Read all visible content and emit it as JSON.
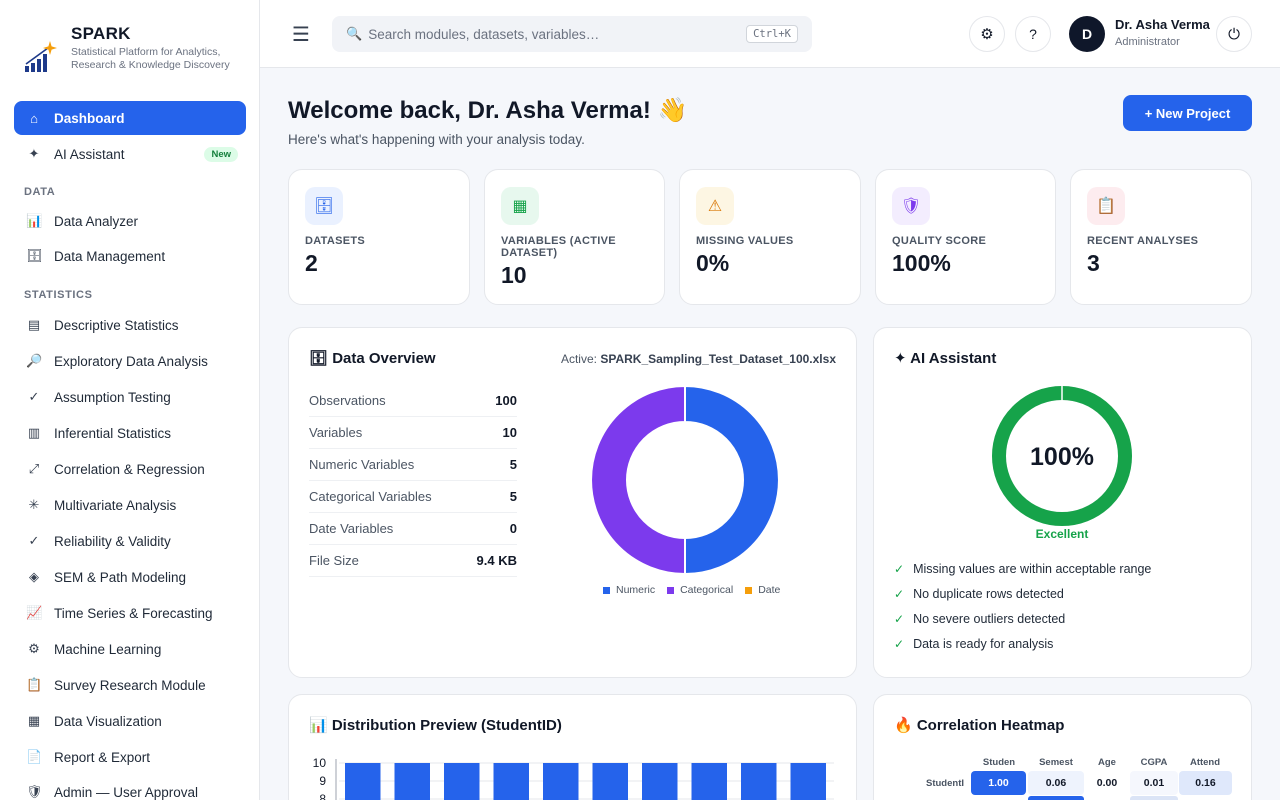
{
  "brand": {
    "name": "SPARK",
    "tagline": "Statistical Platform for Analytics, Research & Knowledge Discovery"
  },
  "sidebar": {
    "top_items": [
      {
        "label": "Dashboard",
        "icon": "home-icon",
        "active": true
      },
      {
        "label": "AI Assistant",
        "icon": "sparkle-icon",
        "badge": "New"
      }
    ],
    "sections": [
      {
        "title": "DATA",
        "items": [
          {
            "label": "Data Analyzer",
            "icon": "bar-chart-icon"
          },
          {
            "label": "Data Management",
            "icon": "database-icon"
          }
        ]
      },
      {
        "title": "STATISTICS",
        "items": [
          {
            "label": "Descriptive Statistics",
            "icon": "list-icon"
          },
          {
            "label": "Exploratory Data Analysis",
            "icon": "magnifier-icon"
          },
          {
            "label": "Assumption Testing",
            "icon": "check-icon"
          },
          {
            "label": "Inferential Statistics",
            "icon": "columns-icon"
          },
          {
            "label": "Correlation & Regression",
            "icon": "diagonal-arrow-icon"
          },
          {
            "label": "Multivariate Analysis",
            "icon": "asterisk-icon"
          },
          {
            "label": "Reliability & Validity",
            "icon": "check-icon"
          },
          {
            "label": "SEM & Path Modeling",
            "icon": "diamond-icon"
          },
          {
            "label": "Time Series & Forecasting",
            "icon": "trend-icon"
          },
          {
            "label": "Machine Learning",
            "icon": "gear-icon"
          },
          {
            "label": "Survey Research Module",
            "icon": "clipboard-icon"
          },
          {
            "label": "Data Visualization",
            "icon": "grid-icon"
          },
          {
            "label": "Report & Export",
            "icon": "document-icon"
          },
          {
            "label": "Admin — User Approval",
            "icon": "shield-icon"
          }
        ]
      }
    ]
  },
  "topbar": {
    "search_placeholder": "Search modules, datasets, variables…",
    "shortcut": "Ctrl+K",
    "user": {
      "initial": "D",
      "name": "Dr. Asha Verma",
      "role": "Administrator"
    }
  },
  "welcome": {
    "title": "Welcome back, Dr. Asha Verma! 👋",
    "subtitle": "Here's what's happening with your analysis today.",
    "new_project": "+ New Project"
  },
  "stats": [
    {
      "label": "DATASETS",
      "value": "2",
      "icon": "database-icon",
      "bg": "#eaf1ff",
      "fg": "#2563eb"
    },
    {
      "label": "VARIABLES (ACTIVE DATASET)",
      "value": "10",
      "icon": "grid-icon",
      "bg": "#e7f8ee",
      "fg": "#16a34a"
    },
    {
      "label": "MISSING VALUES",
      "value": "0%",
      "icon": "warning-icon",
      "bg": "#fdf6e3",
      "fg": "#d97706"
    },
    {
      "label": "QUALITY SCORE",
      "value": "100%",
      "icon": "shield-icon",
      "bg": "#f3edfe",
      "fg": "#7c3aed"
    },
    {
      "label": "RECENT ANALYSES",
      "value": "3",
      "icon": "clipboard-icon",
      "bg": "#fdecef",
      "fg": "#db2777"
    }
  ],
  "overview": {
    "title": "🗄 Data Overview",
    "active_label": "Active:",
    "active_file": "SPARK_Sampling_Test_Dataset_100.xlsx",
    "rows": [
      {
        "k": "Observations",
        "v": "100"
      },
      {
        "k": "Variables",
        "v": "10"
      },
      {
        "k": "Numeric Variables",
        "v": "5"
      },
      {
        "k": "Categorical Variables",
        "v": "5"
      },
      {
        "k": "Date Variables",
        "v": "0"
      },
      {
        "k": "File Size",
        "v": "9.4 KB"
      }
    ]
  },
  "assistant": {
    "title": "✦ AI Assistant",
    "score": "100%",
    "score_value": 100,
    "rating": "Excellent",
    "checks": [
      "Missing values are within acceptable range",
      "No duplicate rows detected",
      "No severe outliers detected",
      "Data is ready for analysis"
    ]
  },
  "distribution": {
    "title": "📊 Distribution Preview (StudentID)"
  },
  "heatmap": {
    "title": "🔥 Correlation Heatmap",
    "columns": [
      "Studen",
      "Semest",
      "Age",
      "CGPA",
      "Attend"
    ],
    "row_label": "StudentI",
    "values": [
      "1.00",
      "0.06",
      "0.00",
      "0.01",
      "0.16"
    ]
  },
  "chart_data": [
    {
      "type": "pie",
      "categories": [
        "Numeric",
        "Categorical",
        "Date"
      ],
      "values": [
        5,
        5,
        0
      ],
      "colors": [
        "#2563eb",
        "#7c3aed",
        "#f59e0b"
      ],
      "legend": "bottom"
    },
    {
      "type": "bar",
      "values": [
        10,
        10,
        10,
        10,
        10,
        10,
        10,
        10,
        10,
        10
      ],
      "y_ticks": [
        "10",
        "9",
        "8"
      ],
      "ylim": [
        0,
        10
      ],
      "color": "#2563eb",
      "grid": true
    }
  ]
}
